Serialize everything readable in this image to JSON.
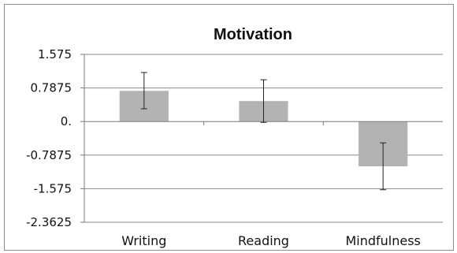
{
  "chart_data": {
    "type": "bar",
    "title": "Motivation",
    "xlabel": "",
    "ylabel": "",
    "categories": [
      "Writing",
      "Reading",
      "Mindfulness"
    ],
    "values": [
      0.72,
      0.48,
      -1.05
    ],
    "error_bars": [
      {
        "low": 0.3,
        "high": 1.15
      },
      {
        "low": -0.02,
        "high": 0.98
      },
      {
        "low": -1.6,
        "high": -0.5
      }
    ],
    "y_ticks": [
      "1.575",
      "0.7875",
      "0.",
      "-0.7875",
      "-1.575",
      "-2.3625"
    ],
    "y_tick_values": [
      1.575,
      0.7875,
      0,
      -0.7875,
      -1.575,
      -2.3625
    ],
    "ylim": [
      -2.3625,
      1.575
    ],
    "grid": true,
    "legend": "none",
    "colors": {
      "bar": "#b3b3b3",
      "grid": "#8a8a8a",
      "axis": "#7a7a7a",
      "error": "#222222"
    }
  }
}
